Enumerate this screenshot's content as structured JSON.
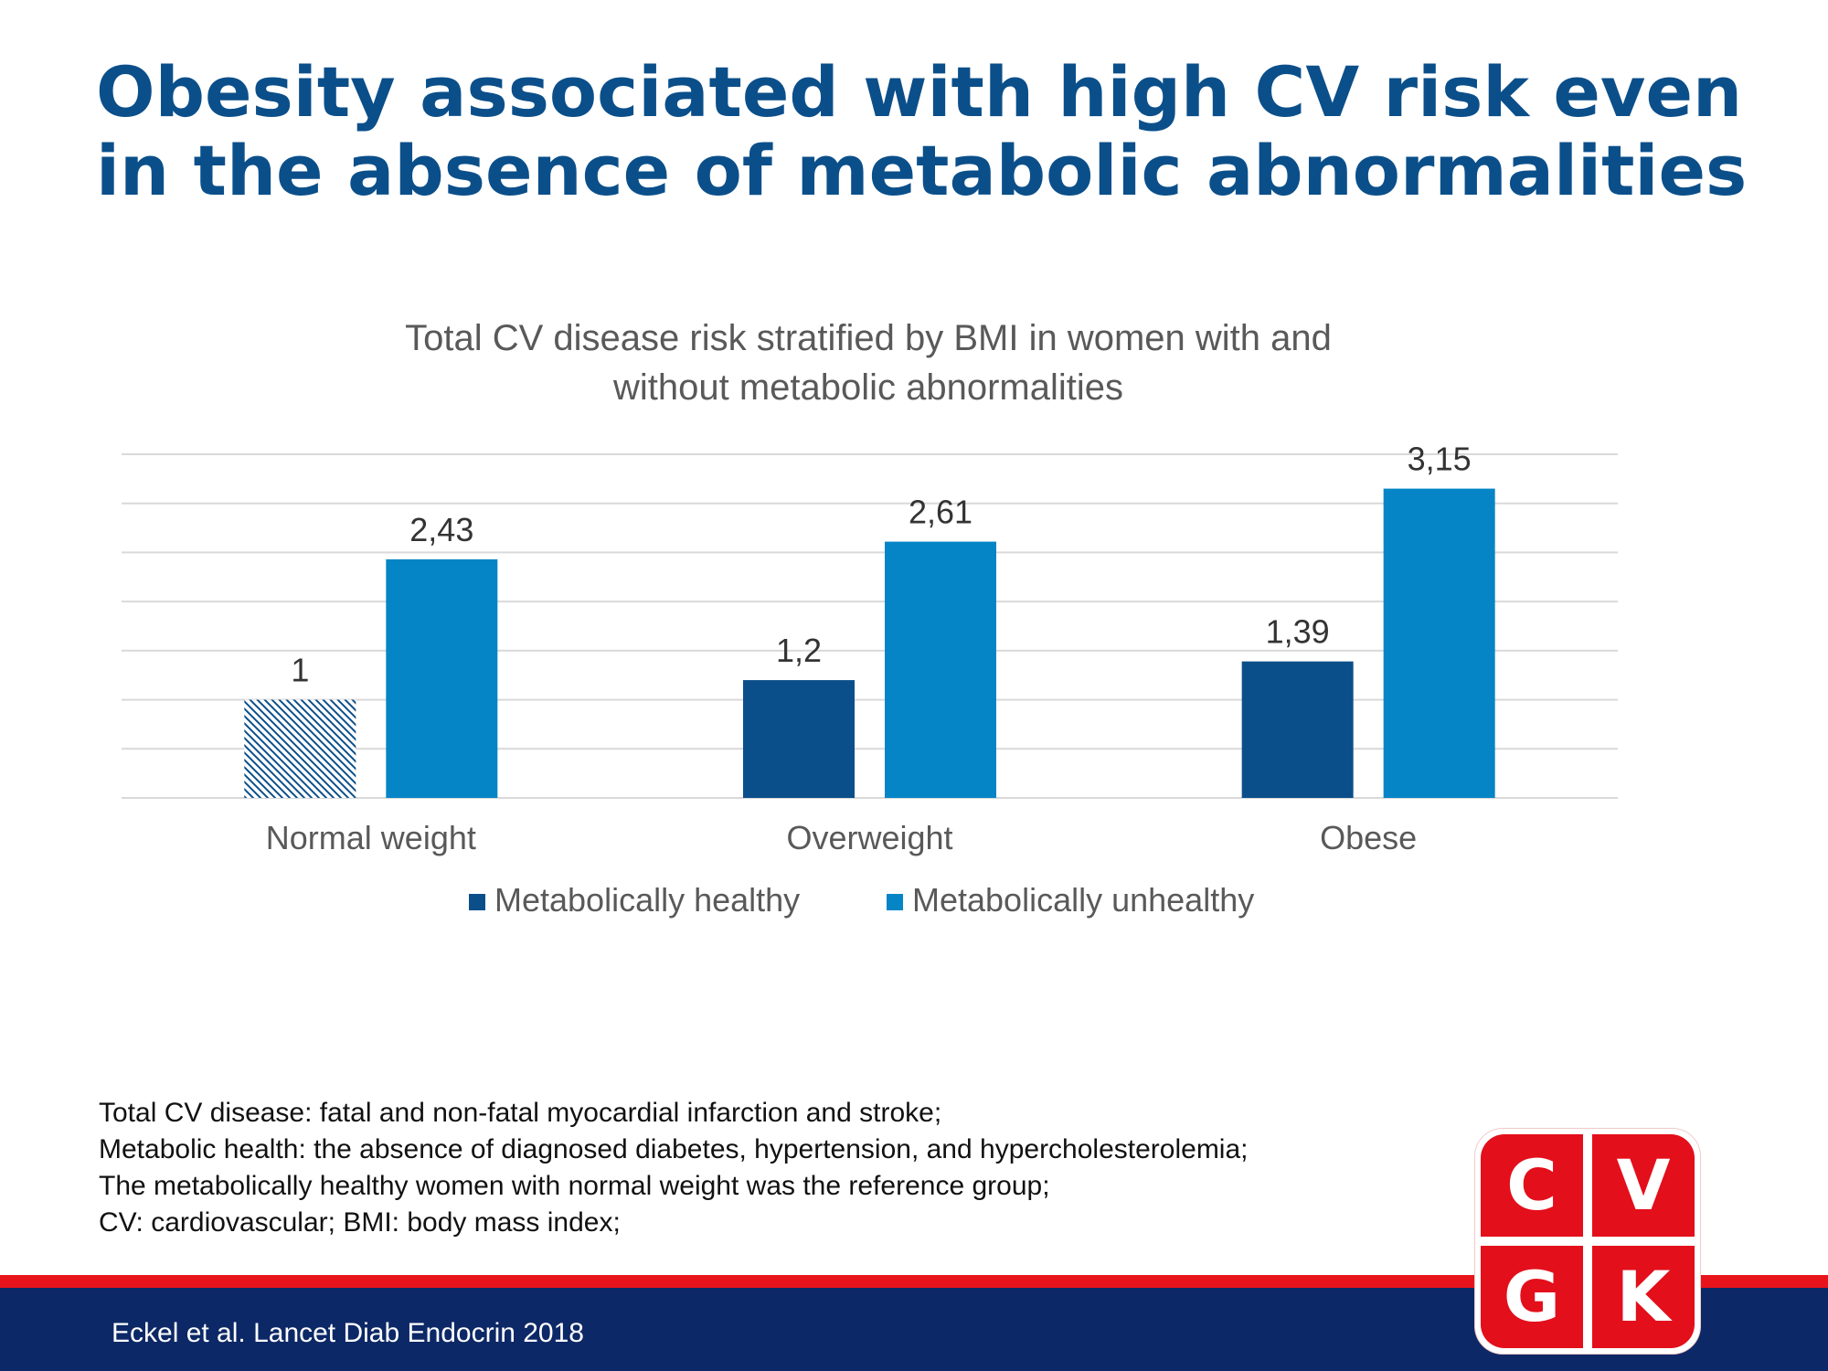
{
  "slide": {
    "title": "Obesity associated with high CV risk even in the absence of metabolic abnormalities",
    "footnotes": [
      "Total CV disease: fatal and non-fatal myocardial infarction and stroke;",
      "Metabolic health: the absence of diagnosed diabetes, hypertension, and hypercholesterolemia;",
      "The metabolically healthy women with normal weight was the reference group;",
      "CV: cardiovascular; BMI: body mass index;"
    ],
    "citation": "Eckel et al. Lancet Diab Endocrin 2018"
  },
  "logo": {
    "letters": [
      "C",
      "V",
      "G",
      "K"
    ],
    "color": "#e30f1b"
  },
  "colors": {
    "title": "#0b4f8a",
    "healthy": "#0b4f8a",
    "unhealthy": "#0585c6",
    "footer_bar": "#0d2866",
    "footer_stripe": "#e8141c"
  },
  "chart_data": {
    "type": "bar",
    "title": "Total CV disease risk stratified by BMI in women with and without metabolic abnormalities",
    "title_lines": [
      "Total CV disease risk stratified by BMI in women with and",
      "without metabolic abnormalities"
    ],
    "categories": [
      "Normal weight",
      "Overweight",
      "Obese"
    ],
    "series": [
      {
        "name": "Metabolically healthy",
        "values": [
          1,
          1.2,
          1.39
        ],
        "labels": [
          "1",
          "1,2",
          "1,39"
        ],
        "color": "#0b4f8a",
        "reference_hatched_index": 0
      },
      {
        "name": "Metabolically unhealthy",
        "values": [
          2.43,
          2.61,
          3.15
        ],
        "labels": [
          "2,43",
          "2,61",
          "3,15"
        ],
        "color": "#0585c6"
      }
    ],
    "ylim": [
      0,
      3.5
    ],
    "y_gridline_step": 0.5,
    "y_axis_labels_shown": false,
    "grid": true,
    "legend": "bottom"
  }
}
